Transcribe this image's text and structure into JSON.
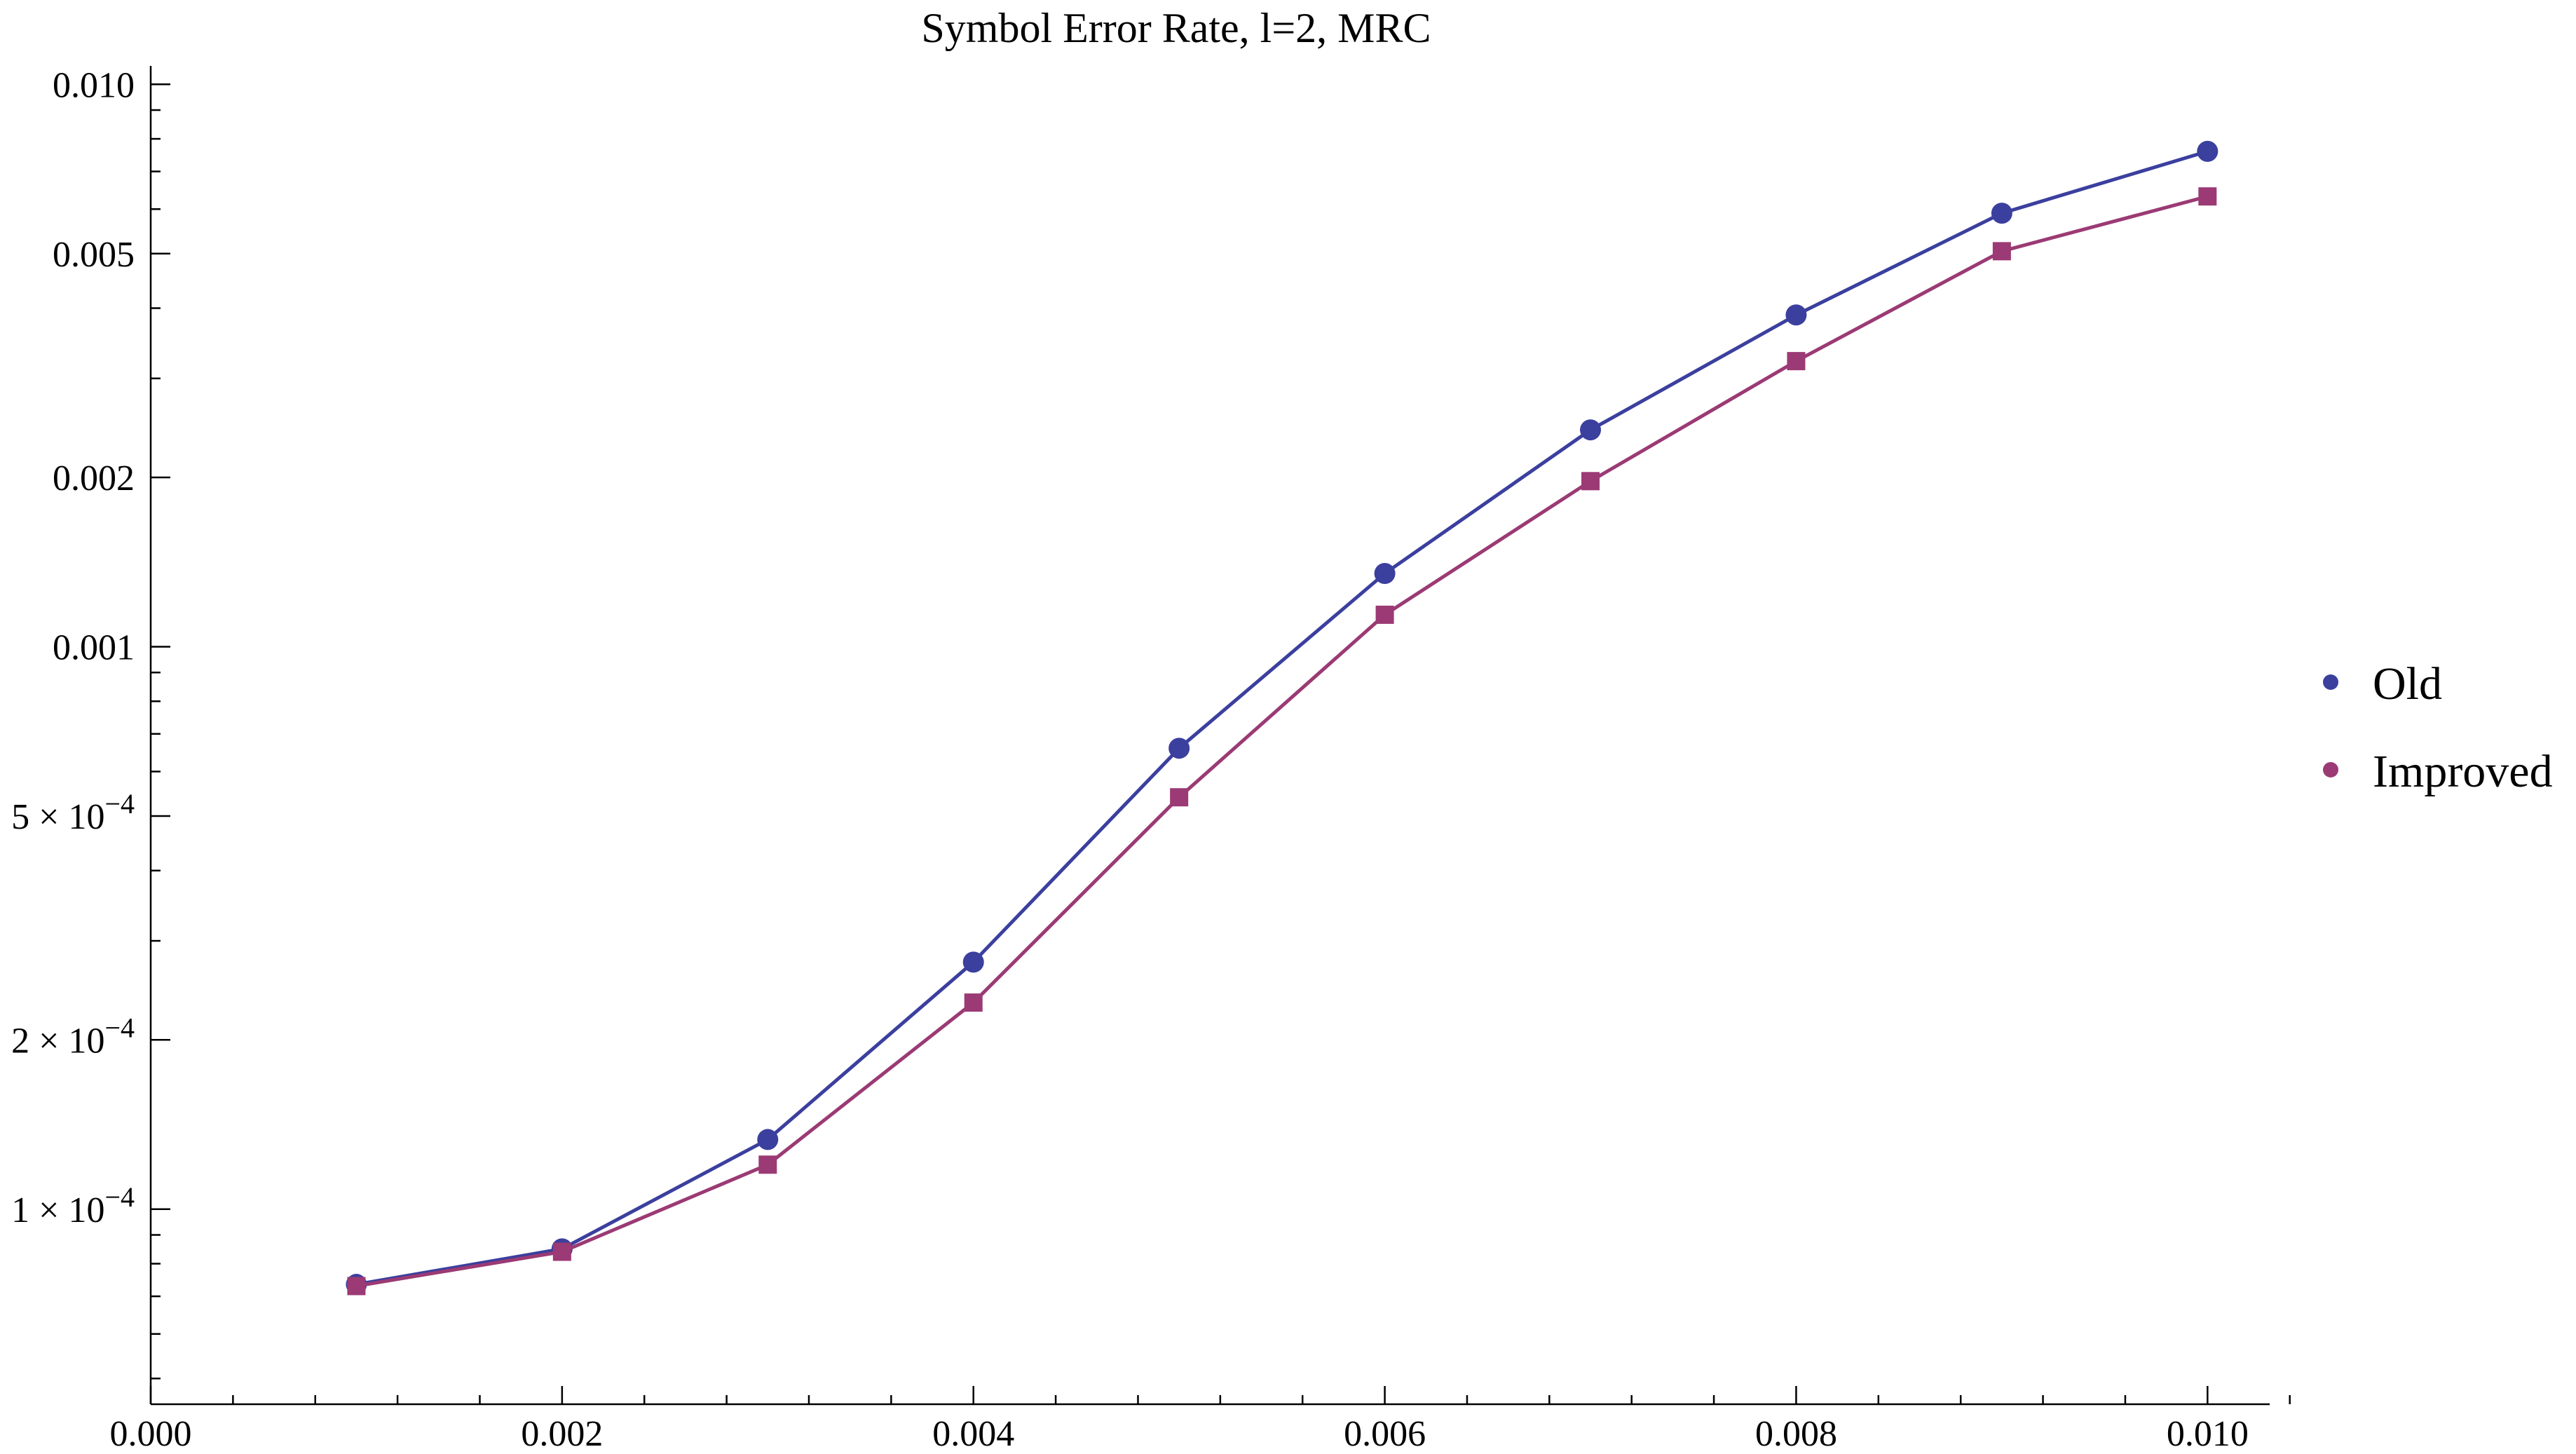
{
  "chart_data": {
    "type": "line",
    "title": "Symbol Error Rate, l=2, MRC",
    "xlabel": "",
    "ylabel": "",
    "y_scale": "log",
    "xlim": [
      0.0,
      0.0102
    ],
    "ylim": [
      4.5e-05,
      0.0106
    ],
    "x": [
      0.001,
      0.002,
      0.003,
      0.004,
      0.005,
      0.006,
      0.007,
      0.008,
      0.009,
      0.01
    ],
    "series": [
      {
        "name": "Old",
        "color": "#3b3f9e",
        "marker": "circle",
        "values": [
          7.35e-05,
          8.5e-05,
          0.000133,
          0.000275,
          0.00066,
          0.00135,
          0.00243,
          0.00389,
          0.0059,
          0.0076
        ]
      },
      {
        "name": "Improved",
        "color": "#9b3a74",
        "marker": "square",
        "values": [
          7.3e-05,
          8.4e-05,
          0.00012,
          0.000233,
          0.00054,
          0.00114,
          0.00197,
          0.00322,
          0.00505,
          0.00632
        ]
      }
    ],
    "x_ticks": [
      {
        "value": 0.0,
        "label": "0.000"
      },
      {
        "value": 0.002,
        "label": "0.002"
      },
      {
        "value": 0.004,
        "label": "0.004"
      },
      {
        "value": 0.006,
        "label": "0.006"
      },
      {
        "value": 0.008,
        "label": "0.008"
      },
      {
        "value": 0.01,
        "label": "0.010"
      }
    ],
    "y_ticks": [
      {
        "value": 0.01,
        "label": "0.010"
      },
      {
        "value": 0.005,
        "label": "0.005"
      },
      {
        "value": 0.002,
        "label": "0.002"
      },
      {
        "value": 0.001,
        "label": "0.001"
      },
      {
        "value": 0.0005,
        "mantissa": "5",
        "times": "×",
        "base": "10",
        "exponent": "−4"
      },
      {
        "value": 0.0002,
        "mantissa": "2",
        "times": "×",
        "base": "10",
        "exponent": "−4"
      },
      {
        "value": 0.0001,
        "mantissa": "1",
        "times": "×",
        "base": "10",
        "exponent": "−4"
      }
    ],
    "legend_position": "right"
  }
}
